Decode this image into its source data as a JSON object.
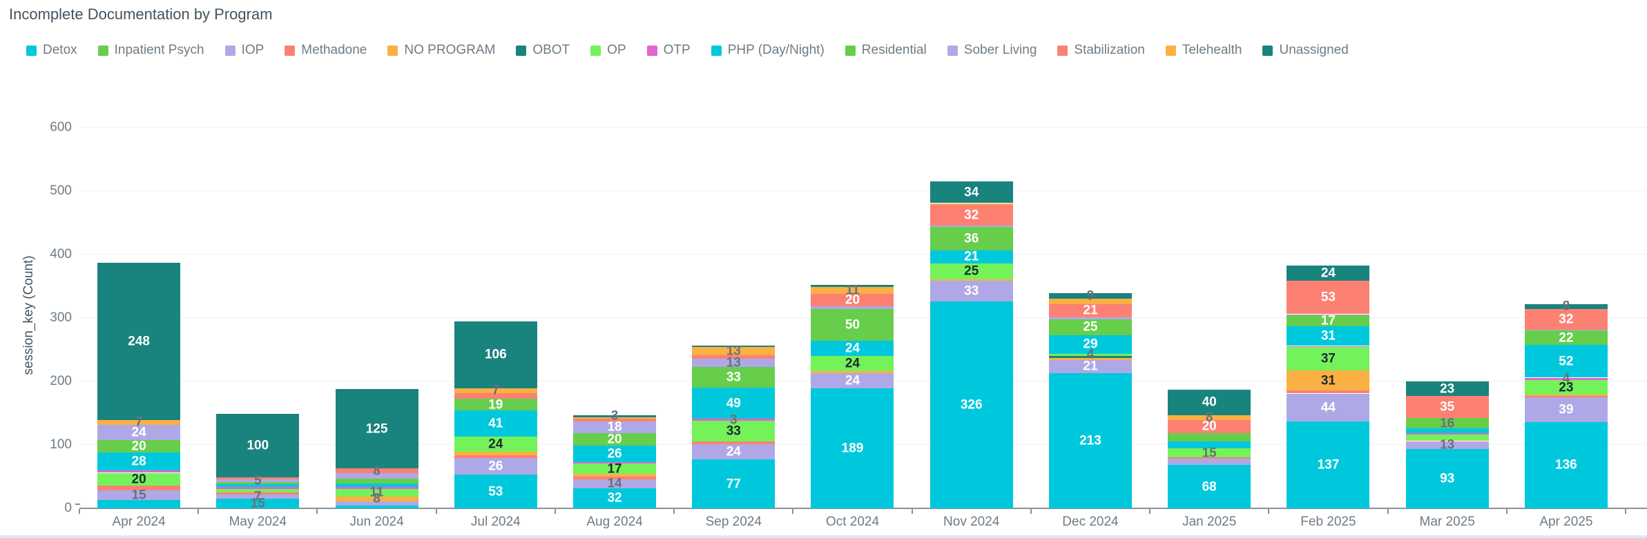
{
  "header": {
    "title": "Incomplete Documentation by Program"
  },
  "chart_data": {
    "type": "bar",
    "variant": "stacked-vertical",
    "title": "Incomplete Documentation by Program",
    "xlabel": "",
    "ylabel": "session_key (Count)",
    "ylim": [
      0,
      600
    ],
    "yticks": [
      0,
      100,
      200,
      300,
      400,
      500,
      600
    ],
    "grid": true,
    "legend_position": "top",
    "label_style_key": {
      "w": "white-inside",
      "d": "dark-inside",
      "g": "gray-overflow",
      "n": "hidden"
    },
    "categories": [
      "Apr 2024",
      "May 2024",
      "Jun 2024",
      "Jul 2024",
      "Aug 2024",
      "Sep 2024",
      "Oct 2024",
      "Nov 2024",
      "Dec 2024",
      "Jan 2025",
      "Feb 2025",
      "Mar 2025",
      "Apr 2025"
    ],
    "series": [
      {
        "name": "Detox",
        "color": "#00C8DC",
        "values": [
          13,
          15,
          4,
          53,
          32,
          77,
          189,
          326,
          213,
          68,
          137,
          93,
          136
        ],
        "labels": [
          "n",
          "g",
          "n",
          "w",
          "w",
          "w",
          "w",
          "w",
          "w",
          "w",
          "w",
          "w",
          "w"
        ]
      },
      {
        "name": "Inpatient Psych",
        "color": "#66CE4B",
        "values": [
          0,
          0,
          0,
          0,
          0,
          0,
          0,
          0,
          0,
          0,
          0,
          0,
          0
        ],
        "labels": [
          "n",
          "n",
          "n",
          "n",
          "n",
          "n",
          "n",
          "n",
          "n",
          "n",
          "n",
          "n",
          "n"
        ]
      },
      {
        "name": "IOP",
        "color": "#AEA9E6",
        "values": [
          15,
          7,
          7,
          26,
          14,
          24,
          24,
          33,
          21,
          10,
          44,
          13,
          39
        ],
        "labels": [
          "g",
          "g",
          "n",
          "w",
          "g",
          "w",
          "w",
          "w",
          "w",
          "n",
          "w",
          "g",
          "w"
        ]
      },
      {
        "name": "Methadone",
        "color": "#FC8173",
        "values": [
          8,
          3,
          0,
          5,
          4,
          4,
          0,
          0,
          0,
          2,
          5,
          0,
          2
        ],
        "labels": [
          "n",
          "n",
          "n",
          "n",
          "n",
          "n",
          "n",
          "n",
          "n",
          "n",
          "n",
          "n",
          "n"
        ]
      },
      {
        "name": "NO PROGRAM",
        "color": "#FBB043",
        "values": [
          0,
          0,
          8,
          5,
          4,
          0,
          3,
          2,
          3,
          0,
          31,
          2,
          2
        ],
        "labels": [
          "n",
          "n",
          "g",
          "n",
          "n",
          "n",
          "n",
          "n",
          "n",
          "n",
          "d",
          "n",
          "n"
        ]
      },
      {
        "name": "OBOT",
        "color": "#19837E",
        "values": [
          0,
          0,
          0,
          0,
          0,
          0,
          0,
          0,
          3,
          0,
          0,
          0,
          0
        ],
        "labels": [
          "n",
          "n",
          "n",
          "n",
          "n",
          "n",
          "n",
          "n",
          "n",
          "n",
          "n",
          "n",
          "n"
        ]
      },
      {
        "name": "OP",
        "color": "#74F25A",
        "values": [
          20,
          5,
          11,
          24,
          17,
          33,
          24,
          25,
          4,
          15,
          37,
          8,
          23
        ],
        "labels": [
          "d",
          "n",
          "g",
          "d",
          "d",
          "d",
          "d",
          "d",
          "g",
          "g",
          "d",
          "n",
          "d"
        ]
      },
      {
        "name": "OTP",
        "color": "#E463D0",
        "values": [
          4,
          4,
          4,
          0,
          2,
          3,
          0,
          0,
          0,
          0,
          2,
          2,
          4
        ],
        "labels": [
          "n",
          "n",
          "n",
          "n",
          "n",
          "g",
          "n",
          "n",
          "n",
          "n",
          "n",
          "n",
          "g"
        ]
      },
      {
        "name": "PHP (Day/Night)",
        "color": "#00C8DC",
        "values": [
          28,
          4,
          5,
          41,
          26,
          49,
          24,
          21,
          29,
          10,
          31,
          8,
          52
        ],
        "labels": [
          "w",
          "n",
          "n",
          "w",
          "w",
          "w",
          "w",
          "w",
          "w",
          "n",
          "w",
          "n",
          "w"
        ]
      },
      {
        "name": "Residential",
        "color": "#66CE4B",
        "values": [
          20,
          3,
          8,
          19,
          20,
          33,
          50,
          36,
          25,
          14,
          17,
          16,
          22
        ],
        "labels": [
          "w",
          "n",
          "n",
          "w",
          "w",
          "w",
          "w",
          "w",
          "w",
          "n",
          "w",
          "g",
          "w"
        ]
      },
      {
        "name": "Sober Living",
        "color": "#AEA9E6",
        "values": [
          24,
          5,
          8,
          0,
          18,
          13,
          4,
          3,
          3,
          0,
          2,
          0,
          2
        ],
        "labels": [
          "w",
          "g",
          "n",
          "n",
          "w",
          "g",
          "n",
          "n",
          "n",
          "n",
          "n",
          "n",
          "n"
        ]
      },
      {
        "name": "Stabilization",
        "color": "#FC8173",
        "values": [
          0,
          3,
          8,
          9,
          4,
          5,
          20,
          32,
          21,
          20,
          53,
          35,
          32
        ],
        "labels": [
          "n",
          "n",
          "g",
          "n",
          "n",
          "n",
          "w",
          "w",
          "w",
          "w",
          "w",
          "w",
          "w"
        ]
      },
      {
        "name": "Telehealth",
        "color": "#FBB043",
        "values": [
          7,
          0,
          0,
          7,
          3,
          13,
          11,
          3,
          8,
          8,
          0,
          0,
          0
        ],
        "labels": [
          "g",
          "n",
          "n",
          "g",
          "n",
          "g",
          "g",
          "n",
          "n",
          "g",
          "n",
          "n",
          "n"
        ]
      },
      {
        "name": "Unassigned",
        "color": "#19837E",
        "values": [
          248,
          100,
          125,
          106,
          3,
          3,
          3,
          34,
          9,
          40,
          24,
          23,
          8
        ],
        "labels": [
          "w",
          "w",
          "w",
          "w",
          "g",
          "n",
          "n",
          "w",
          "g",
          "w",
          "w",
          "w",
          "g"
        ]
      }
    ]
  },
  "axis": {
    "baseline_value_label": "0"
  }
}
